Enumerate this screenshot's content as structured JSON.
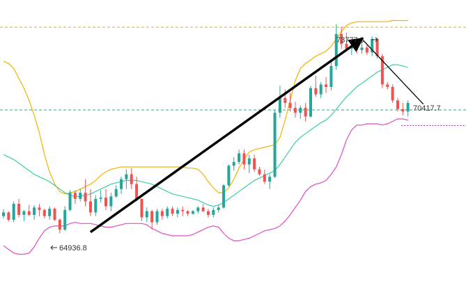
{
  "colors": {
    "up": "#26a69a",
    "down": "#ef5350",
    "upper_band": "#f0b400",
    "middle_band": "#3ccfa8",
    "lower_band": "#e24bc4",
    "level_high": "#f0a020",
    "level_current": "#2aa58a",
    "level_low": "#8e44ad",
    "trend_arrow": "#000000"
  },
  "chart_data": {
    "type": "candlestick",
    "title": "",
    "xlabel": "",
    "ylabel": "",
    "ylim": [
      64000,
      74600
    ],
    "grid": false,
    "annotations": {
      "high_label": "73777.3",
      "low_label": "64936.8",
      "current_label": "70417.7"
    },
    "levels": [
      {
        "name": "high",
        "value": 73777.3,
        "style": "dashed"
      },
      {
        "name": "current",
        "value": 70417.7,
        "style": "dashed"
      },
      {
        "name": "reference",
        "value": 69780,
        "style": "dotted"
      }
    ],
    "candles": [
      [
        66100,
        66380,
        66000,
        66250
      ],
      [
        66250,
        66300,
        65880,
        65950
      ],
      [
        65950,
        66700,
        65850,
        66600
      ],
      [
        66600,
        66800,
        66050,
        66150
      ],
      [
        66150,
        66350,
        65900,
        66300
      ],
      [
        66300,
        66550,
        66100,
        66150
      ],
      [
        66150,
        66550,
        65950,
        66450
      ],
      [
        66450,
        66600,
        66100,
        66350
      ],
      [
        66350,
        66400,
        66000,
        66100
      ],
      [
        66100,
        66500,
        65950,
        66400
      ],
      [
        66400,
        66450,
        65900,
        65950
      ],
      [
        65950,
        66000,
        65400,
        65550
      ],
      [
        65550,
        66500,
        65500,
        66350
      ],
      [
        66350,
        67150,
        66300,
        67050
      ],
      [
        67050,
        67150,
        66600,
        66800
      ],
      [
        66800,
        67200,
        66700,
        67050
      ],
      [
        67050,
        67600,
        66500,
        66700
      ],
      [
        66700,
        67200,
        66100,
        66250
      ],
      [
        66250,
        66950,
        66100,
        66800
      ],
      [
        66800,
        67150,
        66650,
        66850
      ],
      [
        66850,
        67200,
        66350,
        66500
      ],
      [
        66500,
        67050,
        66300,
        66900
      ],
      [
        66900,
        67350,
        66850,
        67200
      ],
      [
        67200,
        67700,
        67000,
        67600
      ],
      [
        67600,
        68000,
        67200,
        67800
      ],
      [
        67800,
        68050,
        67200,
        67400
      ],
      [
        67400,
        67700,
        66700,
        66800
      ],
      [
        66800,
        66800,
        65900,
        66050
      ],
      [
        66050,
        66450,
        65850,
        66300
      ],
      [
        66300,
        66350,
        65550,
        65850
      ],
      [
        65850,
        66400,
        65750,
        66300
      ],
      [
        66300,
        66400,
        65950,
        66100
      ],
      [
        66100,
        66500,
        66000,
        66400
      ],
      [
        66400,
        66500,
        66100,
        66200
      ],
      [
        66200,
        66450,
        66050,
        66350
      ],
      [
        66350,
        66500,
        66100,
        66300
      ],
      [
        66300,
        66350,
        66100,
        66200
      ],
      [
        66200,
        66350,
        66150,
        66300
      ],
      [
        66300,
        66500,
        66200,
        66450
      ],
      [
        66450,
        66600,
        66250,
        66300
      ],
      [
        66300,
        66400,
        66050,
        66150
      ],
      [
        66150,
        66450,
        66050,
        66350
      ],
      [
        66350,
        66550,
        66250,
        66450
      ],
      [
        66450,
        67400,
        66400,
        67350
      ],
      [
        67350,
        68200,
        67300,
        68150
      ],
      [
        68150,
        68500,
        67950,
        68300
      ],
      [
        68300,
        68800,
        68200,
        68650
      ],
      [
        68650,
        68800,
        68000,
        68200
      ],
      [
        68200,
        68600,
        67850,
        68450
      ],
      [
        68450,
        68600,
        67900,
        68000
      ],
      [
        68000,
        68100,
        67750,
        67800
      ],
      [
        67800,
        68000,
        67400,
        67500
      ],
      [
        67500,
        67800,
        67200,
        67700
      ],
      [
        67700,
        70400,
        67650,
        70300
      ],
      [
        70300,
        71400,
        70100,
        70900
      ],
      [
        70900,
        71250,
        70500,
        70700
      ],
      [
        70700,
        71100,
        70350,
        70500
      ],
      [
        70500,
        70750,
        70100,
        70300
      ],
      [
        70300,
        70600,
        70050,
        70500
      ],
      [
        70500,
        70700,
        69950,
        70150
      ],
      [
        70150,
        71400,
        70100,
        71300
      ],
      [
        71300,
        71800,
        70950,
        71050
      ],
      [
        71050,
        71550,
        70900,
        71450
      ],
      [
        71450,
        71750,
        71100,
        71350
      ],
      [
        71350,
        72400,
        71200,
        72200
      ],
      [
        72200,
        73900,
        72050,
        73500
      ],
      [
        73500,
        73800,
        72900,
        73100
      ],
      [
        73100,
        73550,
        72800,
        72900
      ],
      [
        72900,
        73200,
        72650,
        73050
      ],
      [
        73050,
        73300,
        72700,
        72850
      ],
      [
        72850,
        73200,
        72700,
        72950
      ],
      [
        72950,
        73050,
        72650,
        72750
      ],
      [
        72750,
        73400,
        72600,
        73300
      ],
      [
        73300,
        73350,
        72500,
        72600
      ],
      [
        72600,
        72700,
        71300,
        71450
      ],
      [
        71450,
        71550,
        71250,
        71350
      ],
      [
        71350,
        71450,
        70700,
        70800
      ],
      [
        70800,
        70900,
        70350,
        70450
      ],
      [
        70450,
        70700,
        70200,
        70350
      ],
      [
        70350,
        70800,
        70150,
        70700
      ]
    ],
    "upper_band": [
      72400,
      72300,
      72100,
      71700,
      71300,
      70800,
      70200,
      69500,
      68600,
      67900,
      67400,
      67100,
      67000,
      67050,
      67100,
      67200,
      67300,
      67400,
      67550,
      67750,
      67900,
      68000,
      68050,
      68100,
      68100,
      68100,
      68100,
      68100,
      68100,
      68100,
      68100,
      68100,
      68100,
      68100,
      68100,
      68100,
      68050,
      68050,
      68000,
      67800,
      67500,
      67250,
      67050,
      67050,
      67250,
      67600,
      68050,
      68400,
      68700,
      68800,
      68850,
      68900,
      68950,
      69000,
      69300,
      70000,
      70800,
      71600,
      72100,
      72300,
      72450,
      72600,
      72700,
      72800,
      73000,
      73300,
      73600,
      73850,
      73950,
      74000,
      74000,
      74000,
      74000,
      74000,
      74000,
      74000,
      74050,
      74050,
      74050,
      74050
    ],
    "middle_band": [
      68600,
      68500,
      68400,
      68250,
      68100,
      67950,
      67800,
      67700,
      67600,
      67500,
      67350,
      67200,
      67050,
      66950,
      66900,
      66900,
      66950,
      67000,
      67100,
      67200,
      67300,
      67400,
      67450,
      67500,
      67550,
      67550,
      67550,
      67500,
      67450,
      67400,
      67300,
      67200,
      67100,
      67000,
      66950,
      66900,
      66850,
      66800,
      66750,
      66650,
      66550,
      66500,
      66550,
      66650,
      66800,
      66950,
      67100,
      67250,
      67400,
      67550,
      67650,
      67750,
      67850,
      67950,
      68200,
      68500,
      68800,
      69100,
      69300,
      69450,
      69600,
      69750,
      69900,
      70000,
      70200,
      70450,
      70700,
      70950,
      71150,
      71350,
      71500,
      71650,
      71800,
      71950,
      72050,
      72150,
      72250,
      72250,
      72200,
      72150
    ],
    "lower_band": [
      64900,
      64750,
      64600,
      64550,
      64550,
      64600,
      64850,
      65200,
      65500,
      65650,
      65700,
      65700,
      65700,
      65800,
      65850,
      65800,
      65800,
      65800,
      65750,
      65700,
      65650,
      65650,
      65700,
      65750,
      65800,
      65800,
      65800,
      65800,
      65750,
      65600,
      65500,
      65400,
      65350,
      65300,
      65300,
      65300,
      65300,
      65350,
      65450,
      65550,
      65650,
      65700,
      65650,
      65400,
      65200,
      65100,
      65100,
      65150,
      65200,
      65300,
      65400,
      65500,
      65550,
      65600,
      65700,
      65900,
      66150,
      66450,
      66750,
      67100,
      67300,
      67400,
      67450,
      67550,
      67800,
      68100,
      68600,
      69200,
      69600,
      69800,
      69800,
      69850,
      69850,
      69850,
      69800,
      69850,
      69950,
      70050,
      70050,
      70000
    ],
    "trend_lines": [
      {
        "from": [
          17,
          65450
        ],
        "to": [
          70,
          73300
        ],
        "arrow": true
      },
      {
        "from": [
          70,
          73300
        ],
        "to": [
          82,
          70650
        ],
        "arrow": false
      }
    ]
  }
}
